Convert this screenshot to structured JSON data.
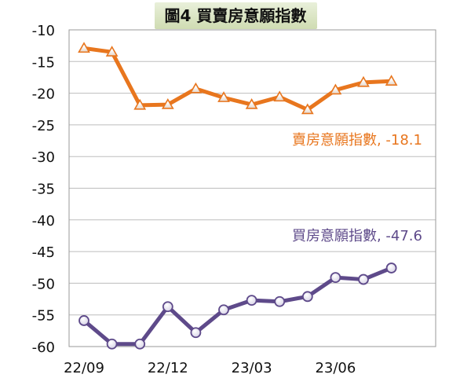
{
  "chart_data": {
    "type": "line",
    "title": "圖4  買賣房意願指數",
    "xlabel": "",
    "ylabel": "",
    "ylim": [
      -60,
      -10
    ],
    "yticks": [
      -10,
      -15,
      -20,
      -25,
      -30,
      -35,
      -40,
      -45,
      -50,
      -55,
      -60
    ],
    "grid": true,
    "x": [
      "2022/09",
      "2022/10",
      "2022/11",
      "2022/12",
      "2023/01",
      "2023/02",
      "2023/03",
      "2023/04",
      "2023/05",
      "2023/06",
      "2023/07",
      "2023/08"
    ],
    "xtick_labels": [
      {
        "index": 0,
        "label": "22/09"
      },
      {
        "index": 3,
        "label": "22/12"
      },
      {
        "index": 6,
        "label": "23/03"
      },
      {
        "index": 9,
        "label": "23/06"
      }
    ],
    "series": [
      {
        "name": "賣房意願指數",
        "label_text": "賣房意願指數, -18.1",
        "color": "#E8761E",
        "marker": "triangle",
        "values": [
          -12.9,
          -13.5,
          -21.9,
          -21.8,
          -19.3,
          -20.7,
          -21.8,
          -20.6,
          -22.6,
          -19.5,
          -18.3,
          -18.1
        ]
      },
      {
        "name": "買房意願指數",
        "label_text": "買房意願指數, -47.6",
        "color": "#5E4A8A",
        "marker": "circle",
        "values": [
          -55.9,
          -59.6,
          -59.6,
          -53.7,
          -57.8,
          -54.2,
          -52.7,
          -52.9,
          -52.1,
          -49.1,
          -49.4,
          -47.6
        ]
      }
    ]
  }
}
